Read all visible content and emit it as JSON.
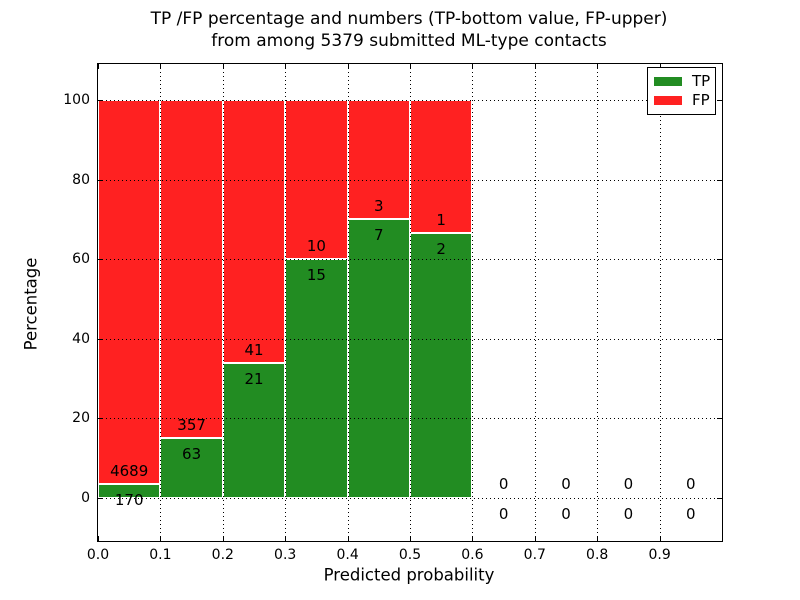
{
  "title": {
    "line1": "TP /FP percentage and numbers (TP-bottom value, FP-upper)",
    "line2": "from among 5379 submitted ML-type contacts"
  },
  "colors": {
    "tp": "#228c22",
    "fp": "#ff2121",
    "bar_edge": "#ffffff",
    "axis": "#000000",
    "grid": "#000000",
    "background": "#ffffff",
    "text": "#000000"
  },
  "chart_data": {
    "type": "bar",
    "stacked": true,
    "title": "TP /FP percentage and numbers (TP-bottom value, FP-upper)\nfrom among 5379 submitted ML-type contacts",
    "xlabel": "Predicted probability",
    "ylabel": "Percentage",
    "xlim": [
      0.0,
      1.0
    ],
    "ylim": [
      -11,
      109
    ],
    "grid": "dotted",
    "total_contacts": 5379,
    "xticks": {
      "values": [
        0.0,
        0.1,
        0.2,
        0.3,
        0.4,
        0.5,
        0.6,
        0.7,
        0.8,
        0.9
      ],
      "labels": [
        "0.0",
        "0.1",
        "0.2",
        "0.3",
        "0.4",
        "0.5",
        "0.6",
        "0.7",
        "0.8",
        "0.9"
      ]
    },
    "yticks": {
      "values": [
        0,
        20,
        40,
        60,
        80,
        100
      ],
      "labels": [
        "0",
        "20",
        "40",
        "60",
        "80",
        "100"
      ]
    },
    "legend": {
      "position": "upper right",
      "entries": [
        {
          "name": "TP",
          "label": "TP",
          "color": "#228c22"
        },
        {
          "name": "FP",
          "label": "FP",
          "color": "#ff2121"
        }
      ]
    },
    "series_note": "TP percentage drawn from bottom (green), FP stacked above to 100% (red); counts annotated (TP below boundary, FP above)",
    "bins": [
      {
        "range": [
          0.0,
          0.1
        ],
        "tp": 170,
        "fp": 4689,
        "tp_pct": 3.5,
        "fp_pct": 96.5
      },
      {
        "range": [
          0.1,
          0.2
        ],
        "tp": 63,
        "fp": 357,
        "tp_pct": 15.0,
        "fp_pct": 85.0
      },
      {
        "range": [
          0.2,
          0.3
        ],
        "tp": 21,
        "fp": 41,
        "tp_pct": 33.9,
        "fp_pct": 66.1
      },
      {
        "range": [
          0.3,
          0.4
        ],
        "tp": 15,
        "fp": 10,
        "tp_pct": 60.0,
        "fp_pct": 40.0
      },
      {
        "range": [
          0.4,
          0.5
        ],
        "tp": 7,
        "fp": 3,
        "tp_pct": 70.0,
        "fp_pct": 30.0
      },
      {
        "range": [
          0.5,
          0.6
        ],
        "tp": 2,
        "fp": 1,
        "tp_pct": 66.7,
        "fp_pct": 33.3
      },
      {
        "range": [
          0.6,
          0.7
        ],
        "tp": 0,
        "fp": 0,
        "tp_pct": 0,
        "fp_pct": 0
      },
      {
        "range": [
          0.7,
          0.8
        ],
        "tp": 0,
        "fp": 0,
        "tp_pct": 0,
        "fp_pct": 0
      },
      {
        "range": [
          0.8,
          0.9
        ],
        "tp": 0,
        "fp": 0,
        "tp_pct": 0,
        "fp_pct": 0
      },
      {
        "range": [
          0.9,
          1.0
        ],
        "tp": 0,
        "fp": 0,
        "tp_pct": 0,
        "fp_pct": 0
      }
    ]
  }
}
